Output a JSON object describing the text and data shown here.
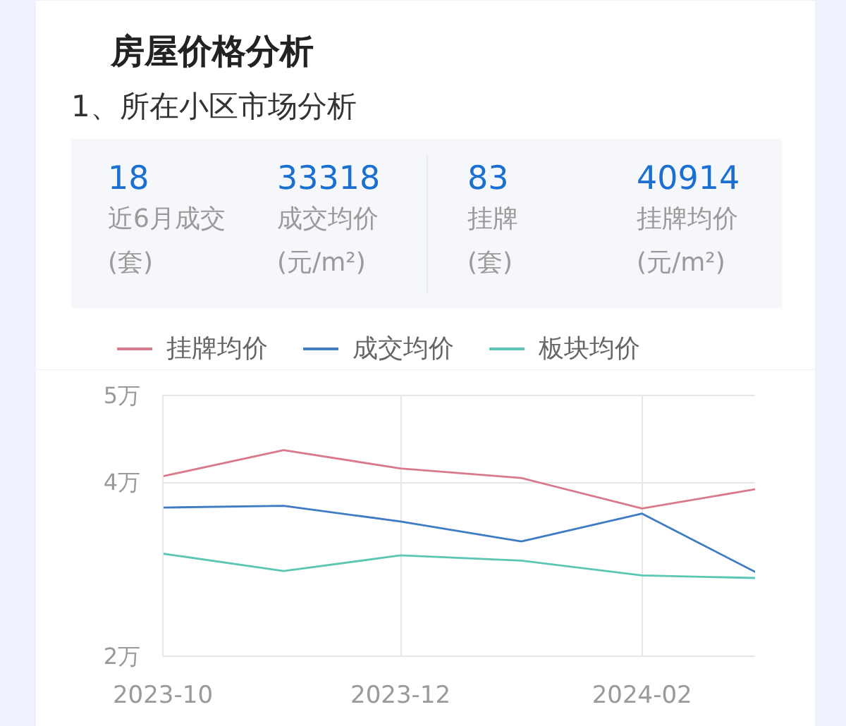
{
  "chart_data": {
    "type": "line",
    "title": "房屋价格分析",
    "subtitle": "1、所在小区市场分析",
    "annotations": [
      "18",
      "近6月成交",
      "(套)",
      "33318",
      "成交均价",
      "(元/m²)",
      "83",
      "挂牌",
      "(套)",
      "40914",
      "挂牌均价",
      "(元/m²)"
    ],
    "x": [
      "2023-10",
      "2023-11",
      "2023-12",
      "2024-01",
      "2024-02",
      "2024-03"
    ],
    "xlim": [
      "2023-10",
      "2024-03"
    ],
    "xticks": [
      "2023-10",
      "2023-12",
      "2024-02"
    ],
    "ylim": [
      2,
      5
    ],
    "yticks": [
      {
        "value": 2,
        "label": "2万"
      },
      {
        "value": 4,
        "label": "4万"
      },
      {
        "value": 5,
        "label": "5万"
      }
    ],
    "grid": true,
    "legend": "top",
    "series": [
      {
        "name": "挂牌均价",
        "color": "#d97a8c",
        "values": [
          4.07,
          4.37,
          4.16,
          4.05,
          3.7,
          3.92
        ]
      },
      {
        "name": "成交均价",
        "color": "#3f7cc4",
        "values": [
          3.71,
          3.73,
          3.55,
          3.32,
          3.64,
          2.97
        ]
      },
      {
        "name": "板块均价",
        "color": "#5cc6b4",
        "values": [
          3.18,
          2.98,
          3.16,
          3.1,
          2.93,
          2.9
        ]
      }
    ]
  }
}
